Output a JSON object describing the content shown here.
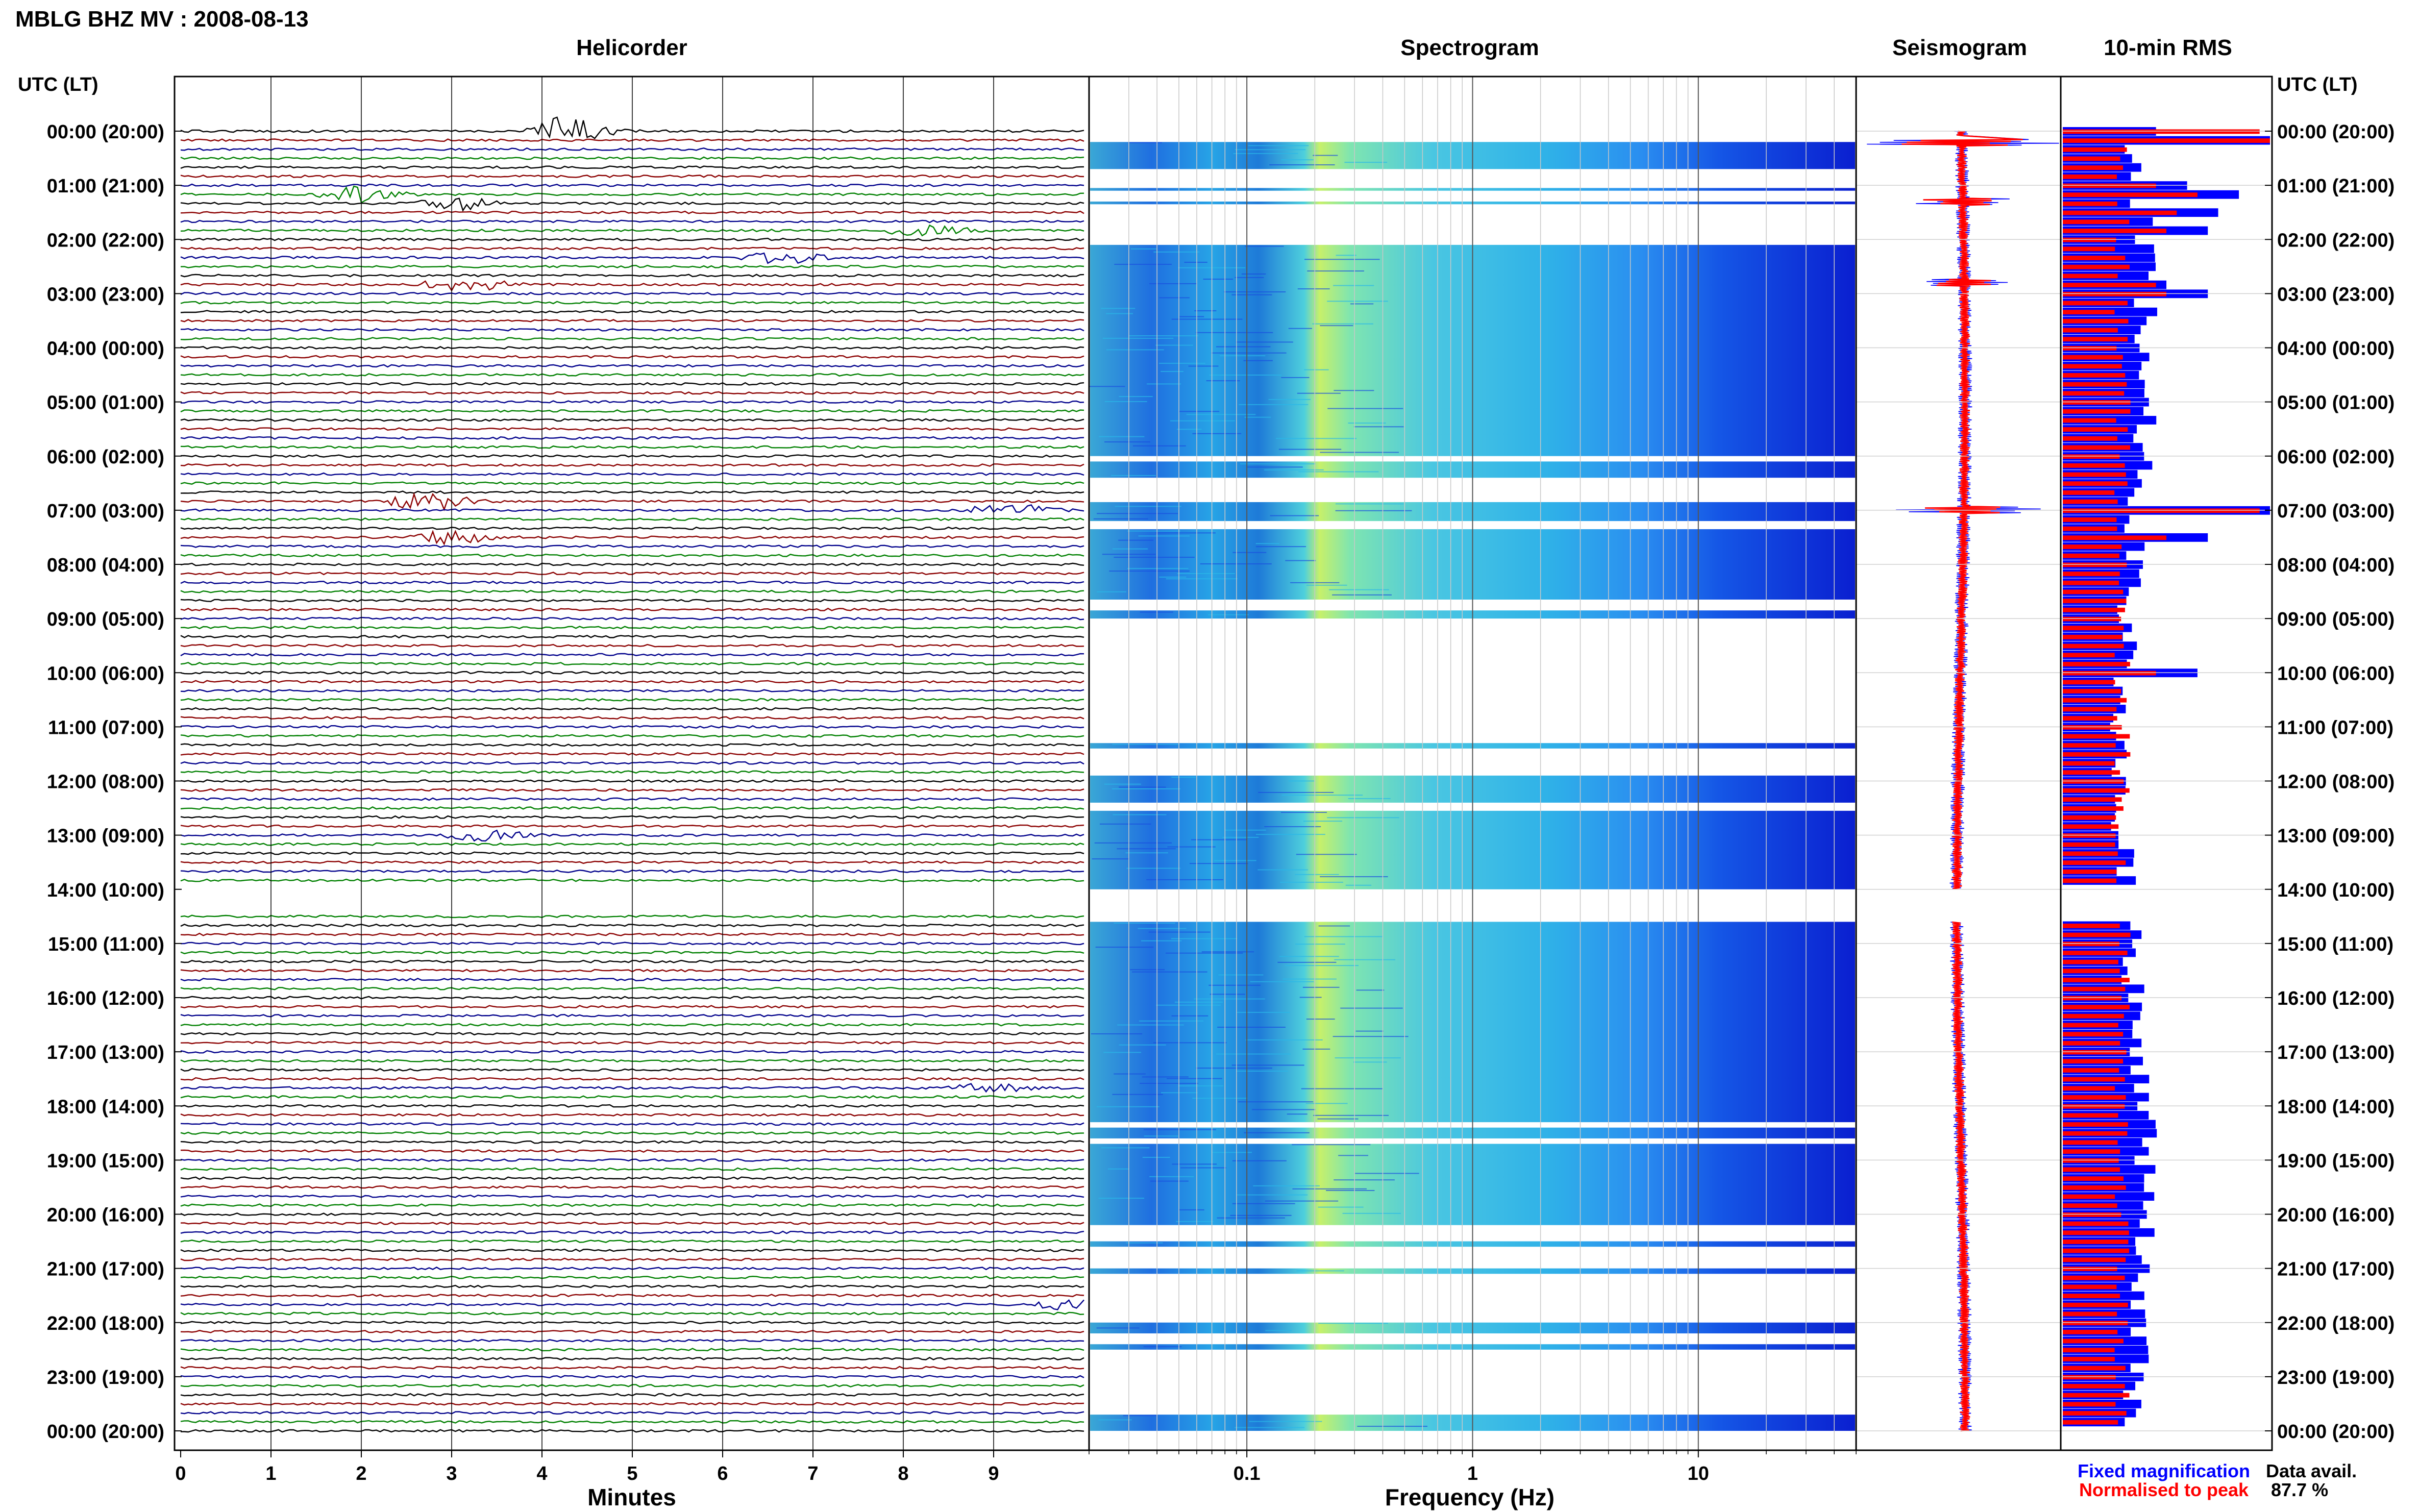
{
  "page_title": "MBLG BHZ MV : 2008-08-13",
  "panels": {
    "helicorder": "Helicorder",
    "spectrogram": "Spectrogram",
    "seismogram": "Seismogram",
    "rms": "10-min RMS"
  },
  "utc_header": "UTC (LT)",
  "xlabels": {
    "helicorder": "Minutes",
    "spectrogram": "Frequency (Hz)"
  },
  "legend": {
    "fixed": "Fixed magnification",
    "normalised": "Normalised to peak"
  },
  "data_avail": {
    "label": "Data avail.",
    "value": "87.7 %"
  },
  "colors": {
    "trace_cycle": [
      "#000000",
      "#8b0000",
      "#00008b",
      "#008000"
    ],
    "fixed": "#0000ff",
    "normalised": "#ff0000"
  },
  "chart_data": [
    {
      "type": "helicorder",
      "title": "Helicorder",
      "xlabel": "Minutes",
      "xlim": [
        0,
        10
      ],
      "xticks": [
        "0",
        "1",
        "2",
        "3",
        "4",
        "5",
        "6",
        "7",
        "8",
        "9"
      ],
      "time_labels": [
        "00:00 (20:00)",
        "01:00 (21:00)",
        "02:00 (22:00)",
        "03:00 (23:00)",
        "04:00 (00:00)",
        "05:00 (01:00)",
        "06:00 (02:00)",
        "07:00 (03:00)",
        "08:00 (04:00)",
        "09:00 (05:00)",
        "10:00 (06:00)",
        "11:00 (07:00)",
        "12:00 (08:00)",
        "13:00 (09:00)",
        "14:00 (10:00)",
        "15:00 (11:00)",
        "16:00 (12:00)",
        "17:00 (13:00)",
        "18:00 (14:00)",
        "19:00 (15:00)",
        "20:00 (16:00)",
        "21:00 (17:00)",
        "22:00 (18:00)",
        "23:00 (19:00)",
        "00:00 (20:00)"
      ],
      "lines_per_hour": 6,
      "gap_hours": [
        14.0,
        14.5
      ],
      "events": [
        {
          "hour": 0.0,
          "minute": 4.0,
          "strength": 3.0
        },
        {
          "hour": 1.2,
          "minute": 1.7,
          "strength": 1.6
        },
        {
          "hour": 1.3,
          "minute": 2.8,
          "strength": 1.4
        },
        {
          "hour": 1.8,
          "minute": 8.0,
          "strength": 1.2
        },
        {
          "hour": 2.8,
          "minute": 2.9,
          "strength": 1.6
        },
        {
          "hour": 2.4,
          "minute": 6.4,
          "strength": 1.2
        },
        {
          "hour": 6.8,
          "minute": 2.5,
          "strength": 2.0
        },
        {
          "hour": 7.0,
          "minute": 8.9,
          "strength": 1.4
        },
        {
          "hour": 7.5,
          "minute": 2.7,
          "strength": 1.5
        },
        {
          "hour": 13.0,
          "minute": 3.1,
          "strength": 1.1
        },
        {
          "hour": 17.6,
          "minute": 8.7,
          "strength": 1.0
        },
        {
          "hour": 21.6,
          "minute": 9.6,
          "strength": 1.0
        }
      ],
      "annotations": "Repeated colour cycle: black, dark red, blue, green per 10-minute line"
    },
    {
      "type": "heatmap",
      "title": "Spectrogram",
      "xlabel": "Frequency (Hz)",
      "xscale": "log",
      "xlim": [
        0.02,
        50
      ],
      "xticks": [
        "0.1",
        "1",
        "10"
      ],
      "colormap": "jet (dark blue low, cyan/yellow high)",
      "bands": [
        {
          "from_hour": 0.2,
          "to_hour": 0.7
        },
        {
          "from_hour": 1.05,
          "to_hour": 1.1
        },
        {
          "from_hour": 1.3,
          "to_hour": 1.35
        },
        {
          "from_hour": 2.1,
          "to_hour": 6.0
        },
        {
          "from_hour": 6.1,
          "to_hour": 6.4
        },
        {
          "from_hour": 6.85,
          "to_hour": 7.2
        },
        {
          "from_hour": 7.35,
          "to_hour": 8.65
        },
        {
          "from_hour": 8.85,
          "to_hour": 9.0
        },
        {
          "from_hour": 11.3,
          "to_hour": 11.4
        },
        {
          "from_hour": 11.9,
          "to_hour": 12.4
        },
        {
          "from_hour": 12.55,
          "to_hour": 14.0
        },
        {
          "from_hour": 14.6,
          "to_hour": 18.3
        },
        {
          "from_hour": 18.4,
          "to_hour": 18.6
        },
        {
          "from_hour": 18.7,
          "to_hour": 20.2
        },
        {
          "from_hour": 20.5,
          "to_hour": 20.6
        },
        {
          "from_hour": 21.0,
          "to_hour": 21.1
        },
        {
          "from_hour": 22.0,
          "to_hour": 22.2
        },
        {
          "from_hour": 22.4,
          "to_hour": 22.5
        },
        {
          "from_hour": 23.7,
          "to_hour": 24.0
        }
      ],
      "peak_frequency_hz": 0.25
    },
    {
      "type": "line",
      "title": "Seismogram",
      "series": [
        {
          "name": "Fixed magnification",
          "color": "#0000ff"
        },
        {
          "name": "Normalised to peak",
          "color": "#ff0000"
        }
      ],
      "gap_hours": [
        14.0,
        14.6
      ],
      "spikes": [
        {
          "hour": 0.2,
          "amplitude": 1.0
        },
        {
          "hour": 1.3,
          "amplitude": 0.6
        },
        {
          "hour": 2.8,
          "amplitude": 0.5
        },
        {
          "hour": 7.0,
          "amplitude": 0.9
        }
      ]
    },
    {
      "type": "bar",
      "title": "10-min RMS",
      "orientation": "horizontal",
      "bins_per_hour": 6,
      "series": [
        {
          "name": "Fixed magnification",
          "color": "#0000ff"
        },
        {
          "name": "Normalised to peak",
          "color": "#ff0000"
        }
      ],
      "gap_hours": [
        14.0,
        14.6
      ],
      "xlim": [
        0,
        1
      ],
      "notable_bins": [
        {
          "hour": 0.0,
          "fixed": 0.45,
          "normalised": 0.95
        },
        {
          "hour": 0.2,
          "fixed": 1.0,
          "normalised": 1.0
        },
        {
          "hour": 1.0,
          "fixed": 0.6,
          "normalised": 0.45
        },
        {
          "hour": 1.2,
          "fixed": 0.85,
          "normalised": 0.65
        },
        {
          "hour": 1.5,
          "fixed": 0.75,
          "normalised": 0.55
        },
        {
          "hour": 1.8,
          "fixed": 0.7,
          "normalised": 0.5
        },
        {
          "hour": 2.8,
          "fixed": 0.5,
          "normalised": 0.45
        },
        {
          "hour": 3.0,
          "fixed": 0.7,
          "normalised": 0.5
        },
        {
          "hour": 7.0,
          "fixed": 1.0,
          "normalised": 0.95
        },
        {
          "hour": 7.5,
          "fixed": 0.7,
          "normalised": 0.5
        },
        {
          "hour": 10.0,
          "fixed": 0.65,
          "normalised": 0.45
        }
      ],
      "baseline_fixed": 0.32,
      "baseline_normalised": 0.28
    }
  ]
}
